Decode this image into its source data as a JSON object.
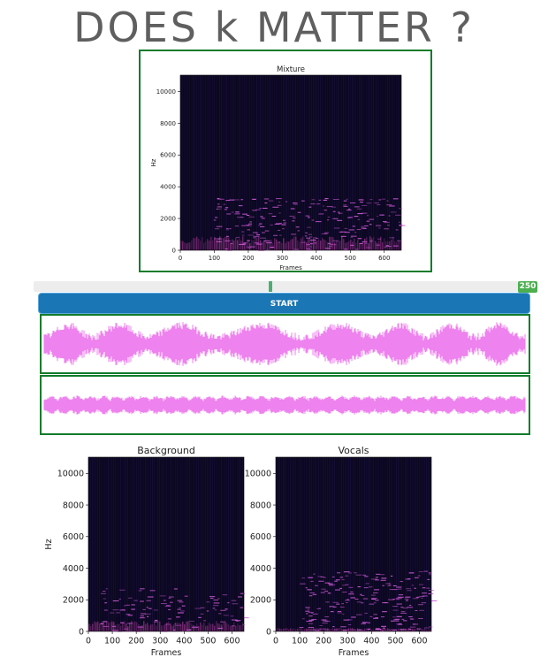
{
  "header": {
    "title": "DOES k MATTER ?"
  },
  "controls": {
    "slider_value": "250",
    "slider_fraction": 0.47,
    "start_label": "START"
  },
  "colors": {
    "frame_green": "#117c2a",
    "button_blue": "#1a76b4",
    "waveform_pink": "#ee82ee",
    "slider_badge": "#4caf50"
  },
  "chart_data": [
    {
      "type": "heatmap",
      "title": "Mixture",
      "xlabel": "Frames",
      "ylabel": "Hz",
      "xticks": [
        0,
        100,
        200,
        300,
        400,
        500,
        600
      ],
      "yticks": [
        0,
        2000,
        4000,
        6000,
        8000,
        10000
      ],
      "xlim": [
        0,
        650
      ],
      "ylim": [
        0,
        11025
      ]
    },
    {
      "type": "heatmap",
      "title": "Background",
      "xlabel": "Frames",
      "ylabel": "Hz",
      "xticks": [
        0,
        100,
        200,
        300,
        400,
        500,
        600
      ],
      "yticks": [
        0,
        2000,
        4000,
        6000,
        8000,
        10000
      ],
      "xlim": [
        0,
        650
      ],
      "ylim": [
        0,
        11025
      ]
    },
    {
      "type": "heatmap",
      "title": "Vocals",
      "xlabel": "Frames",
      "ylabel": "",
      "xticks": [
        0,
        100,
        200,
        300,
        400,
        500,
        600
      ],
      "yticks": [
        0,
        2000,
        4000,
        6000,
        8000,
        10000
      ],
      "xlim": [
        0,
        650
      ],
      "ylim": [
        0,
        11025
      ]
    }
  ]
}
